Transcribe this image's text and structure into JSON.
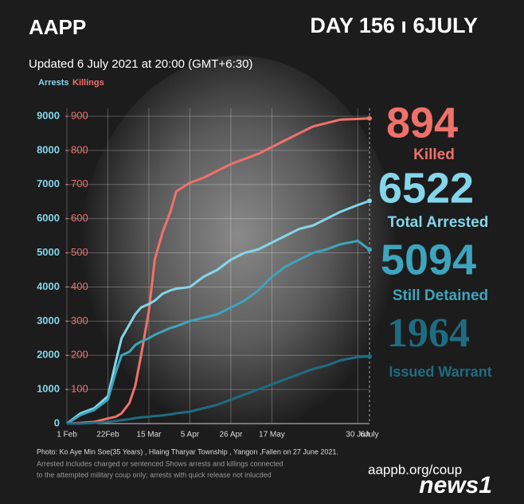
{
  "chart_data": {
    "type": "line",
    "brand": "AAPP",
    "day_label": "DAY 156 ı 6JULY",
    "title": "Updated 6 July 2021 at 20:00 (GMT+6:30)",
    "ylabel": "Arrests",
    "y2label": "Killings",
    "x": [
      0,
      7,
      14,
      21,
      25,
      28,
      32,
      35,
      38,
      42,
      45,
      49,
      53,
      56,
      63,
      70,
      77,
      84,
      91,
      98,
      105,
      112,
      119,
      126,
      133,
      140,
      149,
      155
    ],
    "xlim": [
      0,
      155
    ],
    "xticks": [
      {
        "value": 0,
        "label": "1 Feb"
      },
      {
        "value": 21,
        "label": "22Feb"
      },
      {
        "value": 42,
        "label": "15 Mar"
      },
      {
        "value": 63,
        "label": "5 Apr"
      },
      {
        "value": 84,
        "label": "26 Apr"
      },
      {
        "value": 105,
        "label": "17 May"
      },
      {
        "value": 149,
        "label": "30 Jun"
      },
      {
        "value": 155,
        "label": "6July"
      }
    ],
    "ylim": [
      0,
      9000
    ],
    "yticks": [
      0,
      1000,
      2000,
      3000,
      4000,
      5000,
      6000,
      7000,
      8000,
      9000
    ],
    "y2lim": [
      0,
      900
    ],
    "y2ticks": [
      100,
      200,
      300,
      400,
      500,
      600,
      700,
      800,
      900
    ],
    "grid": true,
    "series": [
      {
        "name": "Killed",
        "color": "#f0716b",
        "axis": "y2",
        "total": 894,
        "values": [
          0,
          2,
          5,
          15,
          20,
          30,
          60,
          110,
          200,
          330,
          480,
          560,
          620,
          680,
          705,
          720,
          740,
          760,
          775,
          790,
          810,
          830,
          850,
          870,
          880,
          890,
          892,
          894
        ]
      },
      {
        "name": "Total Arrested",
        "color": "#84d6ea",
        "total": 6522,
        "values": [
          0,
          300,
          450,
          800,
          1800,
          2500,
          2900,
          3200,
          3400,
          3500,
          3600,
          3800,
          3900,
          3950,
          4000,
          4300,
          4500,
          4800,
          5000,
          5100,
          5300,
          5500,
          5700,
          5800,
          6000,
          6200,
          6400,
          6522
        ]
      },
      {
        "name": "Still Detained",
        "color": "#3fa4bd",
        "total": 5094,
        "values": [
          0,
          250,
          400,
          700,
          1500,
          2000,
          2100,
          2300,
          2400,
          2500,
          2600,
          2700,
          2800,
          2850,
          3000,
          3100,
          3200,
          3400,
          3600,
          3900,
          4300,
          4600,
          4800,
          5000,
          5100,
          5250,
          5350,
          5094
        ]
      },
      {
        "name": "Issued Warrant",
        "color": "#1f6c82",
        "total": 1964,
        "values": [
          0,
          0,
          20,
          50,
          80,
          100,
          130,
          160,
          180,
          200,
          220,
          240,
          270,
          300,
          350,
          450,
          550,
          700,
          850,
          1000,
          1150,
          1300,
          1450,
          1600,
          1700,
          1850,
          1950,
          1964
        ]
      }
    ],
    "notes": [
      "Photo:  Ko Aye Min Soe(35 Years) ,  Hlaing Tharyar Township  , Yangon ,Fallen on 27 June 2021.",
      "Arrested includes charged or sentenced Shows arrests and killings connected",
      "to the attempted military coup only; arrests with quick release not inlucded"
    ],
    "url": "aappb.org/coup",
    "logo": "news1"
  }
}
